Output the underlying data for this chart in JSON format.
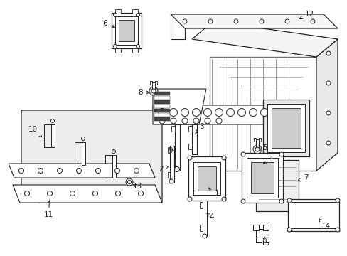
{
  "bg_color": "#ffffff",
  "lc": "#222222",
  "gray1": "#f0f0f0",
  "gray2": "#e0e0e0",
  "gray3": "#d0d0d0"
}
